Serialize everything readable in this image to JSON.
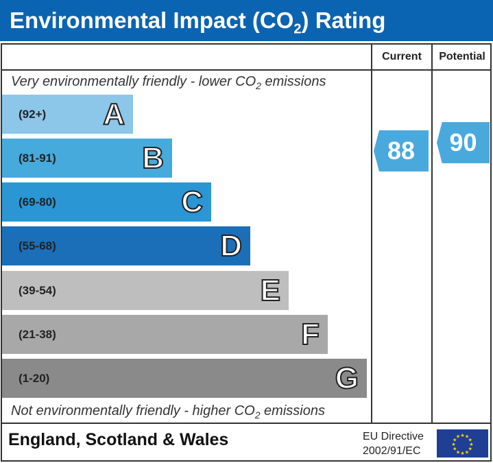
{
  "title": "Environmental Impact (CO",
  "title_sub": "2",
  "title_end": ") Rating",
  "columns": {
    "current": "Current",
    "potential": "Potential"
  },
  "top_note": {
    "pre": "Very environmentally friendly - lower CO",
    "sub": "2",
    "post": " emissions"
  },
  "bottom_note": {
    "pre": "Not environmentally friendly - higher CO",
    "sub": "2",
    "post": " emissions"
  },
  "bands": [
    {
      "range": "(92+)",
      "letter": "A",
      "color": "#8cc6e8"
    },
    {
      "range": "(81-91)",
      "letter": "B",
      "color": "#46aadc"
    },
    {
      "range": "(69-80)",
      "letter": "C",
      "color": "#2a96d4"
    },
    {
      "range": "(55-68)",
      "letter": "D",
      "color": "#1a6fb8"
    },
    {
      "range": "(39-54)",
      "letter": "E",
      "color": "#bebebe"
    },
    {
      "range": "(21-38)",
      "letter": "F",
      "color": "#a8a8a8"
    },
    {
      "range": "(1-20)",
      "letter": "G",
      "color": "#8a8a8a"
    }
  ],
  "current": {
    "value": "88",
    "band": "B"
  },
  "potential": {
    "value": "90",
    "band": "B"
  },
  "footer": {
    "region": "England, Scotland & Wales",
    "directive_line1": "EU Directive",
    "directive_line2": "2002/91/EC"
  }
}
